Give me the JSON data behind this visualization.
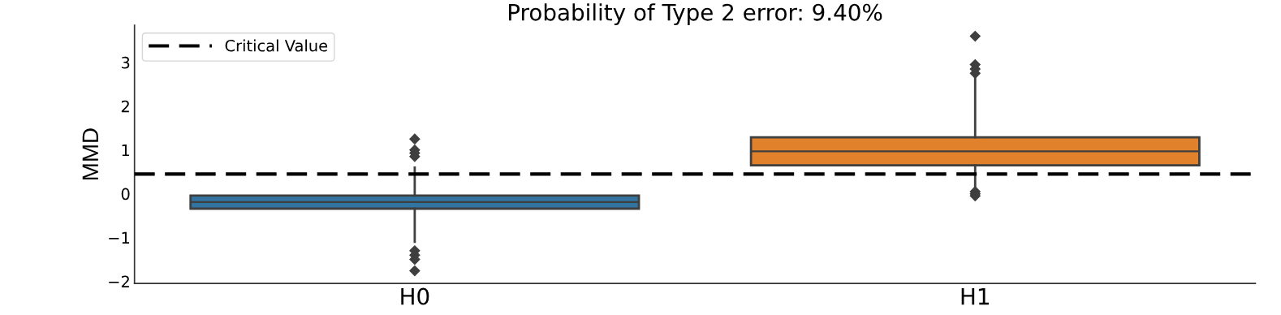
{
  "chart_data": {
    "type": "box",
    "title": "Probability of Type 2 error: 9.40%",
    "ylabel": "MMD",
    "categories": [
      "H0",
      "H1"
    ],
    "series": [
      {
        "colors": [
          "#3274a1",
          "#e1812c"
        ],
        "boxes": [
          {
            "low": -1.1,
            "q1": -0.34,
            "median": -0.19,
            "q3": -0.04,
            "high": 0.6,
            "outliers": [
              1.25,
              1.0,
              0.93,
              0.85,
              -1.3,
              -1.4,
              -1.5,
              -1.76
            ]
          },
          {
            "low": 0.17,
            "q1": 0.65,
            "median": 0.97,
            "q3": 1.29,
            "high": 2.64,
            "outliers": [
              3.6,
              2.95,
              2.85,
              2.75,
              0.05,
              0.0,
              -0.05
            ]
          }
        ]
      }
    ],
    "ylim": [
      -2.05,
      3.85
    ],
    "yticks": [
      {
        "value": -2,
        "label": "−2"
      },
      {
        "value": -1,
        "label": "−1"
      },
      0,
      1,
      2,
      3
    ],
    "ref_lines": [
      {
        "axis": "y",
        "value": 0.45,
        "label": "Critical Value",
        "color": "#000000",
        "line_style": "dashed"
      }
    ],
    "legend": "top left",
    "grid": false,
    "marker": "diamond"
  }
}
